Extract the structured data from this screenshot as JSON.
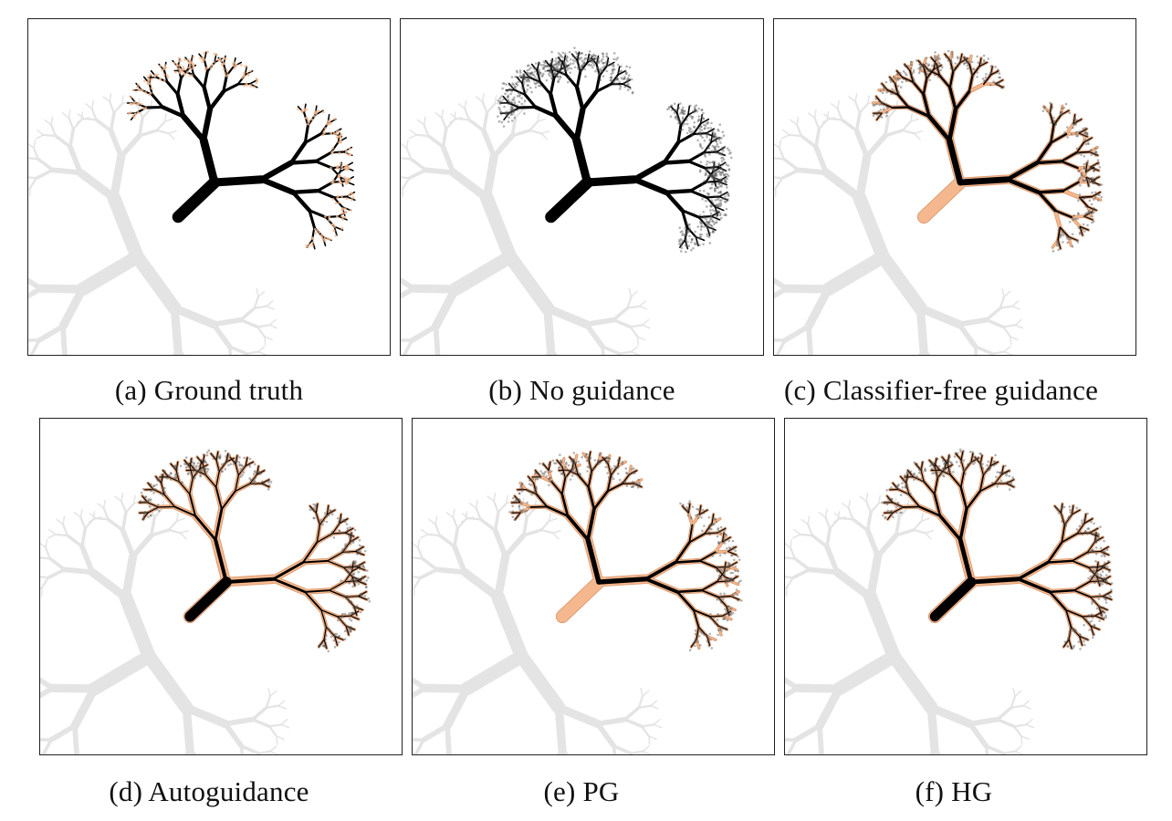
{
  "colors": {
    "background_tree": "#e4e4e4",
    "target_branch": "#f5b88e",
    "target_outline": "#d8946a",
    "samples": "#000000",
    "scatter": "#555555"
  },
  "panels": [
    {
      "id": "a",
      "caption": "(a) Ground truth",
      "variant": "truth"
    },
    {
      "id": "b",
      "caption": "(b) No guidance",
      "variant": "noguide"
    },
    {
      "id": "c",
      "caption": "(c) Classifier-free guidance",
      "variant": "cfg"
    },
    {
      "id": "d",
      "caption": "(d) Autoguidance",
      "variant": "auto"
    },
    {
      "id": "e",
      "caption": "(e) PG",
      "variant": "pg"
    },
    {
      "id": "f",
      "caption": "(f) HG",
      "variant": "hg"
    }
  ]
}
